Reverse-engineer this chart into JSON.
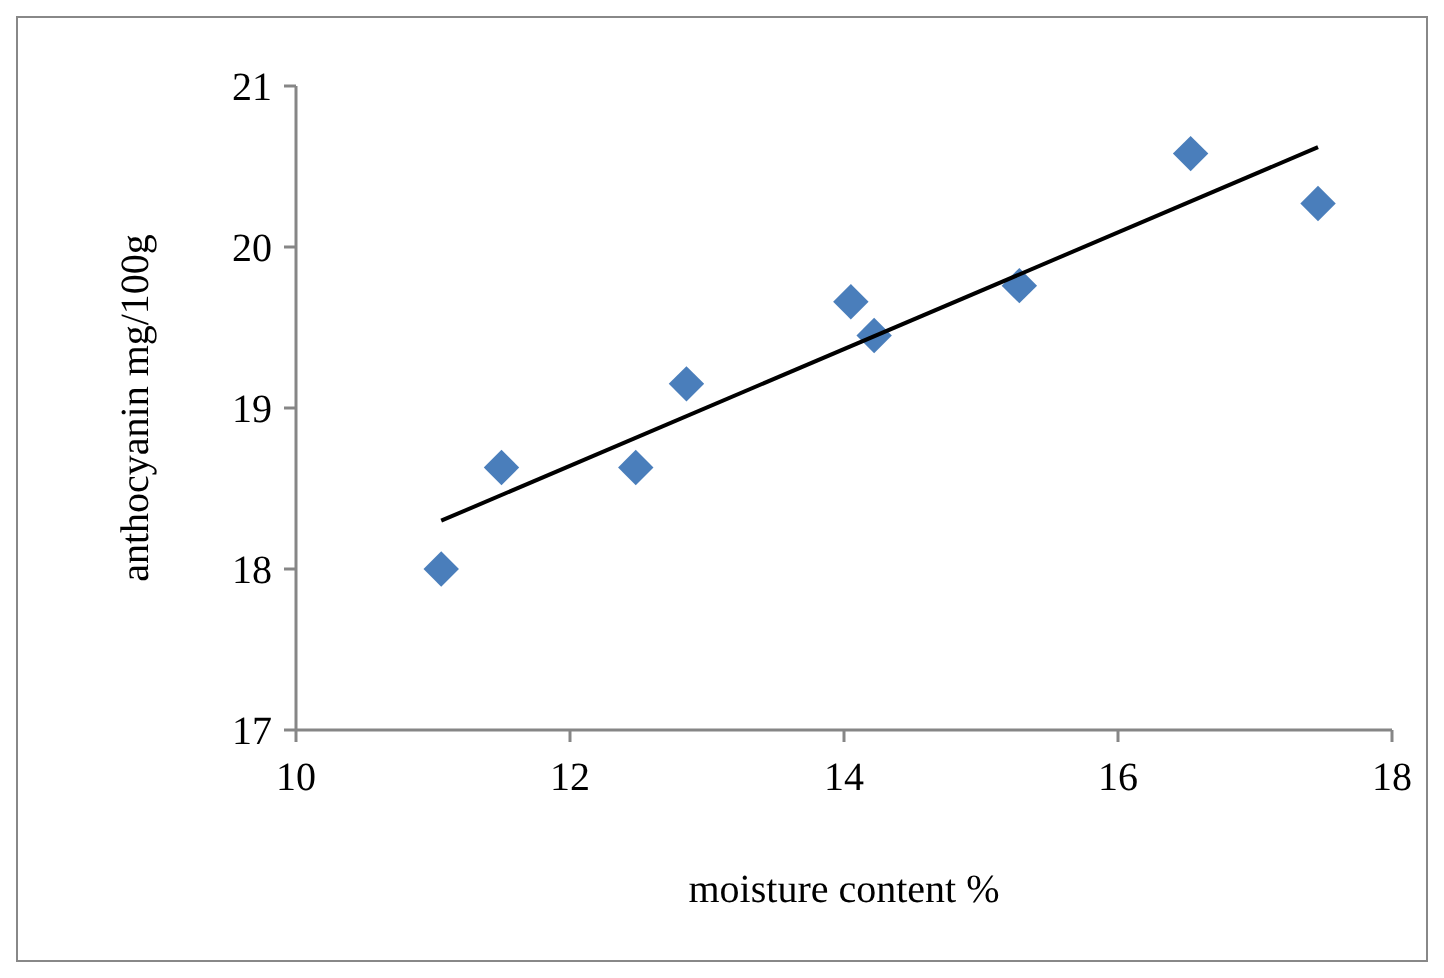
{
  "chart_data": {
    "type": "scatter",
    "xlabel": "moisture content %",
    "ylabel": "anthocyanin mg/100g",
    "x": [
      11.06,
      11.5,
      12.48,
      12.85,
      14.05,
      14.22,
      15.28,
      16.53,
      17.46
    ],
    "series": [
      {
        "color": "#4a7ebb",
        "marker": "diamond",
        "values": [
          18.0,
          18.63,
          18.63,
          19.15,
          19.66,
          19.45,
          19.76,
          20.58,
          20.27
        ]
      },
      {
        "type": "line",
        "color": "#000000",
        "marker": "none",
        "x": [
          11.06,
          17.46
        ],
        "values": [
          18.3,
          20.62
        ]
      }
    ],
    "xlim": [
      10,
      18
    ],
    "xticks": [
      10,
      12,
      14,
      16,
      18
    ],
    "ylim": [
      17,
      21
    ],
    "yticks": [
      17,
      18,
      19,
      20,
      21
    ],
    "grid": false
  }
}
